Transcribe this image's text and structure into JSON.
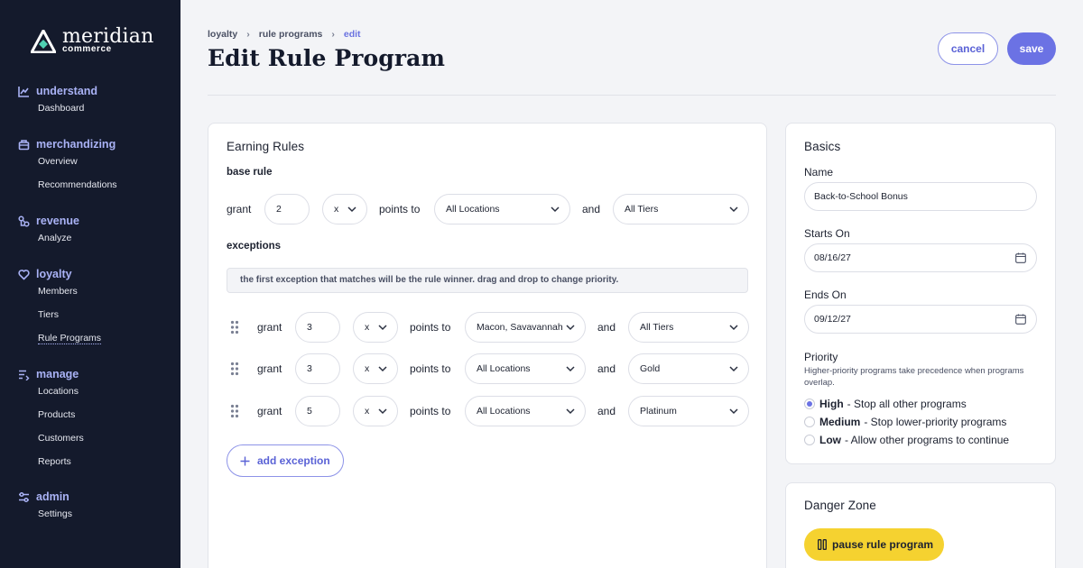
{
  "brand": {
    "name": "meridian",
    "sub": "commerce"
  },
  "sidebar": {
    "sections": [
      {
        "label": "understand",
        "icon": "chart-line-icon",
        "items": [
          "Dashboard"
        ]
      },
      {
        "label": "merchandizing",
        "icon": "storefront-icon",
        "items": [
          "Overview",
          "Recommendations"
        ]
      },
      {
        "label": "revenue",
        "icon": "revenue-nodes-icon",
        "items": [
          "Analyze"
        ]
      },
      {
        "label": "loyalty",
        "icon": "heart-icon",
        "items": [
          "Members",
          "Tiers",
          "Rule Programs"
        ],
        "active_item": "Rule Programs"
      },
      {
        "label": "manage",
        "icon": "list-icon",
        "items": [
          "Locations",
          "Products",
          "Customers",
          "Reports"
        ]
      },
      {
        "label": "admin",
        "icon": "sliders-icon",
        "items": [
          "Settings"
        ]
      }
    ]
  },
  "breadcrumb": [
    "loyalty",
    "rule programs",
    "edit"
  ],
  "header": {
    "title": "Edit Rule Program",
    "cancel_label": "cancel",
    "save_label": "save"
  },
  "earning_rules": {
    "title": "Earning Rules",
    "base_rule_label": "base rule",
    "grant_word": "grant",
    "points_to_word": "points to",
    "and_word": "and",
    "base_rule": {
      "points": "2",
      "multiplier": "x",
      "location": "All Locations",
      "tier": "All Tiers"
    },
    "exceptions_label": "exceptions",
    "exceptions_note": "the first exception that matches will be the rule winner. drag and drop to change priority.",
    "exceptions": [
      {
        "points": "3",
        "multiplier": "x",
        "location": "Macon, Savavannah",
        "tier": "All Tiers"
      },
      {
        "points": "3",
        "multiplier": "x",
        "location": "All Locations",
        "tier": "Gold"
      },
      {
        "points": "5",
        "multiplier": "x",
        "location": "All Locations",
        "tier": "Platinum"
      }
    ],
    "add_exception_label": "add exception"
  },
  "basics": {
    "title": "Basics",
    "name_label": "Name",
    "name_value": "Back-to-School Bonus",
    "starts_label": "Starts On",
    "starts_value": "08/16/27",
    "ends_label": "Ends On",
    "ends_value": "09/12/27",
    "priority_label": "Priority",
    "priority_help": "Higher-priority programs take precedence when programs overlap.",
    "priority_options": [
      {
        "level": "High",
        "desc": "- Stop all other programs",
        "selected": true
      },
      {
        "level": "Medium",
        "desc": "- Stop lower-priority programs",
        "selected": false
      },
      {
        "level": "Low",
        "desc": "- Allow other programs to continue",
        "selected": false
      }
    ]
  },
  "danger_zone": {
    "title": "Danger Zone",
    "pause_label": "pause rule program"
  },
  "colors": {
    "sidebar_bg": "#141a2c",
    "accent": "#6b72e4",
    "accent_light": "#a9b2f5",
    "warning": "#f5d230"
  }
}
